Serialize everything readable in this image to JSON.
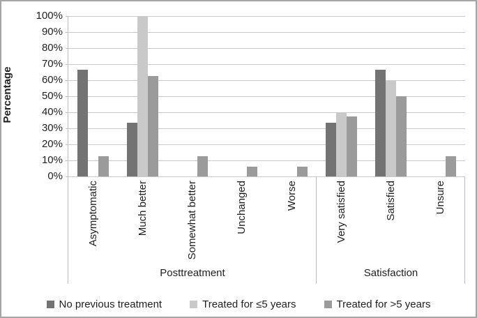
{
  "chart_data": {
    "type": "bar",
    "title": "",
    "xlabel": "",
    "ylabel": "Percentage",
    "ylim": [
      0,
      100
    ],
    "ytick_step": 10,
    "ytick_labels": [
      "0%",
      "10%",
      "20%",
      "30%",
      "40%",
      "50%",
      "60%",
      "70%",
      "80%",
      "90%",
      "100%"
    ],
    "grid": "horizontal",
    "legend_position": "bottom",
    "groups": [
      {
        "label": "Posttreatment",
        "categories": [
          "Asymptomatic",
          "Much better",
          "Somewhat better",
          "Unchanged",
          "Worse"
        ]
      },
      {
        "label": "Satisfaction",
        "categories": [
          "Very satisfied",
          "Satisfied",
          "Unsure"
        ]
      }
    ],
    "categories": [
      "Asymptomatic",
      "Much better",
      "Somewhat better",
      "Unchanged",
      "Worse",
      "Very satisfied",
      "Satisfied",
      "Unsure"
    ],
    "series": [
      {
        "name": "No previous treatment",
        "color": "#737373",
        "values": [
          66.7,
          33.3,
          0,
          0,
          0,
          33.3,
          66.7,
          0
        ]
      },
      {
        "name": "Treated for ≤5 years",
        "color": "#c9c9c9",
        "values": [
          0,
          100,
          0,
          0,
          0,
          40,
          60,
          0
        ]
      },
      {
        "name": "Treated for >5 years",
        "color": "#9b9b9b",
        "values": [
          12.5,
          62.5,
          12.5,
          6.25,
          6.25,
          37.5,
          50,
          12.5
        ]
      }
    ]
  }
}
